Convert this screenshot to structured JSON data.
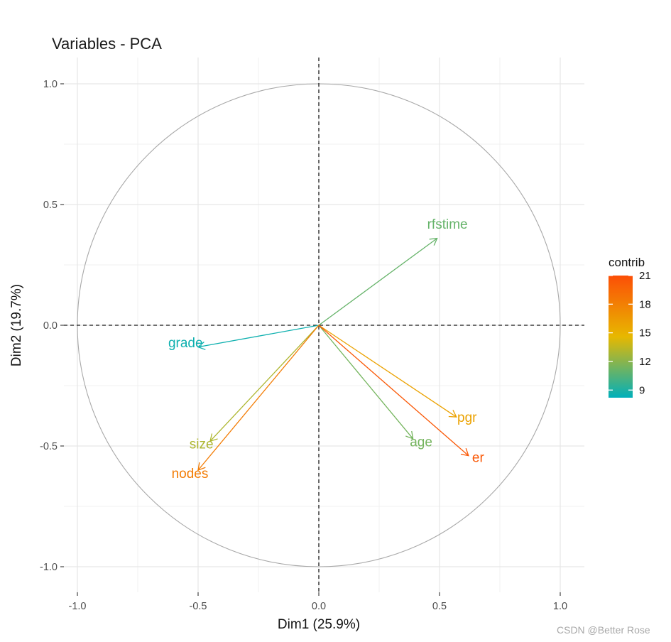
{
  "chart_data": {
    "type": "scatter",
    "subtype": "pca-variable-correlation-circle",
    "title": "Variables - PCA",
    "xlabel": "Dim1 (25.9%)",
    "ylabel": "Dim2 (19.7%)",
    "xlim": [
      -1.1,
      1.1
    ],
    "ylim": [
      -1.1,
      1.1
    ],
    "xticks": [
      -1.0,
      -0.5,
      0.0,
      0.5,
      1.0
    ],
    "xtick_labels": [
      "-1.0",
      "-0.5",
      "0.0",
      "0.5",
      "1.0"
    ],
    "yticks": [
      -1.0,
      -0.5,
      0.0,
      0.5,
      1.0
    ],
    "ytick_labels": [
      "-1.0",
      "-0.5",
      "0.0",
      "0.5",
      "1.0"
    ],
    "grid": true,
    "unit_circle": true,
    "reference_lines": [
      "x=0",
      "y=0"
    ],
    "variables": [
      {
        "name": "rfstime",
        "x": 0.49,
        "y": 0.36,
        "contrib": 11.0
      },
      {
        "name": "grade",
        "x": -0.5,
        "y": -0.09,
        "contrib": 8.6
      },
      {
        "name": "size",
        "x": -0.45,
        "y": -0.48,
        "contrib": 13.0
      },
      {
        "name": "nodes",
        "x": -0.5,
        "y": -0.6,
        "contrib": 18.2
      },
      {
        "name": "age",
        "x": 0.39,
        "y": -0.47,
        "contrib": 11.4
      },
      {
        "name": "pgr",
        "x": 0.57,
        "y": -0.38,
        "contrib": 15.9
      },
      {
        "name": "er",
        "x": 0.62,
        "y": -0.54,
        "contrib": 20.4
      }
    ],
    "legend": {
      "title": "contrib",
      "position": "right",
      "min": 8.2,
      "max": 21.0,
      "ticks": [
        9,
        12,
        15,
        18,
        21
      ],
      "tick_labels": [
        "9",
        "12",
        "15",
        "18",
        "21"
      ],
      "gradient": [
        "#00AFBB",
        "#E7B800",
        "#FC4E07"
      ]
    }
  },
  "watermark": "CSDN @Better Rose"
}
